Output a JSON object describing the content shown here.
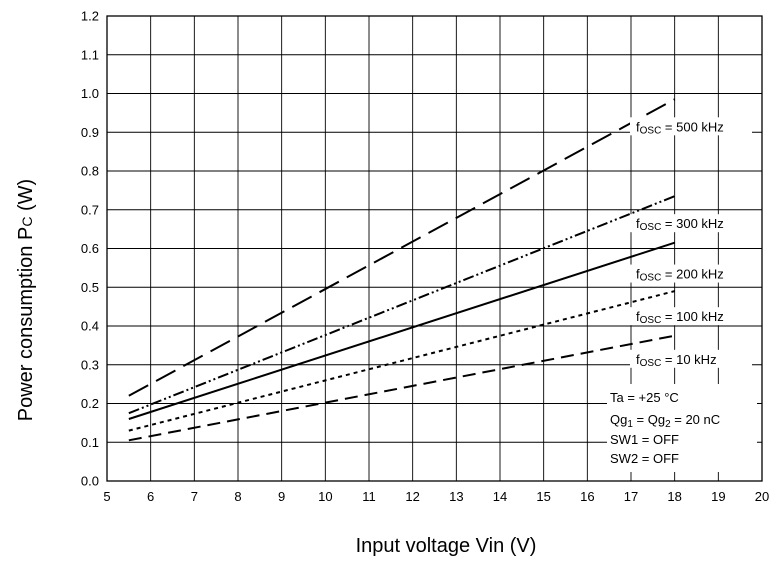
{
  "chart_data": {
    "type": "line",
    "title": "",
    "xlabel": "Input voltage Vin (V)",
    "ylabel": {
      "main": "Power consumption P",
      "subscript": "C",
      "unit": " (W)"
    },
    "xlim": [
      5,
      20
    ],
    "ylim": [
      0.0,
      1.2
    ],
    "grid": true,
    "x_ticks": [
      "5",
      "6",
      "7",
      "8",
      "9",
      "10",
      "11",
      "12",
      "13",
      "14",
      "15",
      "16",
      "17",
      "18",
      "19",
      "20"
    ],
    "y_ticks": [
      "0.0",
      "0.1",
      "0.2",
      "0.3",
      "0.4",
      "0.5",
      "0.6",
      "0.7",
      "0.8",
      "0.9",
      "1.0",
      "1.1",
      "1.2"
    ],
    "series": [
      {
        "name": "fOSC = 500 kHz",
        "label_sub": "OSC",
        "label_rest": " = 500 kHz",
        "x": [
          5.5,
          18
        ],
        "y": [
          0.22,
          0.985
        ],
        "dash": "long-dash"
      },
      {
        "name": "fOSC = 300 kHz",
        "label_sub": "OSC",
        "label_rest": " = 300 kHz",
        "x": [
          5.5,
          18
        ],
        "y": [
          0.175,
          0.735
        ],
        "dash": "dash-dot-dot"
      },
      {
        "name": "fOSC = 200 kHz",
        "label_sub": "OSC",
        "label_rest": " = 200 kHz",
        "x": [
          5.5,
          18
        ],
        "y": [
          0.16,
          0.615
        ],
        "dash": "solid"
      },
      {
        "name": "fOSC = 100 kHz",
        "label_sub": "OSC",
        "label_rest": " = 100 kHz",
        "x": [
          5.5,
          18
        ],
        "y": [
          0.13,
          0.49
        ],
        "dash": "dotted"
      },
      {
        "name": "fOSC = 10 kHz",
        "label_sub": "OSC",
        "label_rest": " = 10 kHz",
        "x": [
          5.5,
          18
        ],
        "y": [
          0.105,
          0.375
        ],
        "dash": "medium-dash"
      }
    ],
    "conditions": {
      "ta": "Ta = +25 °C",
      "qg": {
        "p1": "Qg",
        "s1": "1",
        "p2": " = Qg",
        "s2": "2",
        "p3": " = 20 nC"
      },
      "sw1": "SW1 = OFF",
      "sw2": "SW2 = OFF"
    }
  }
}
